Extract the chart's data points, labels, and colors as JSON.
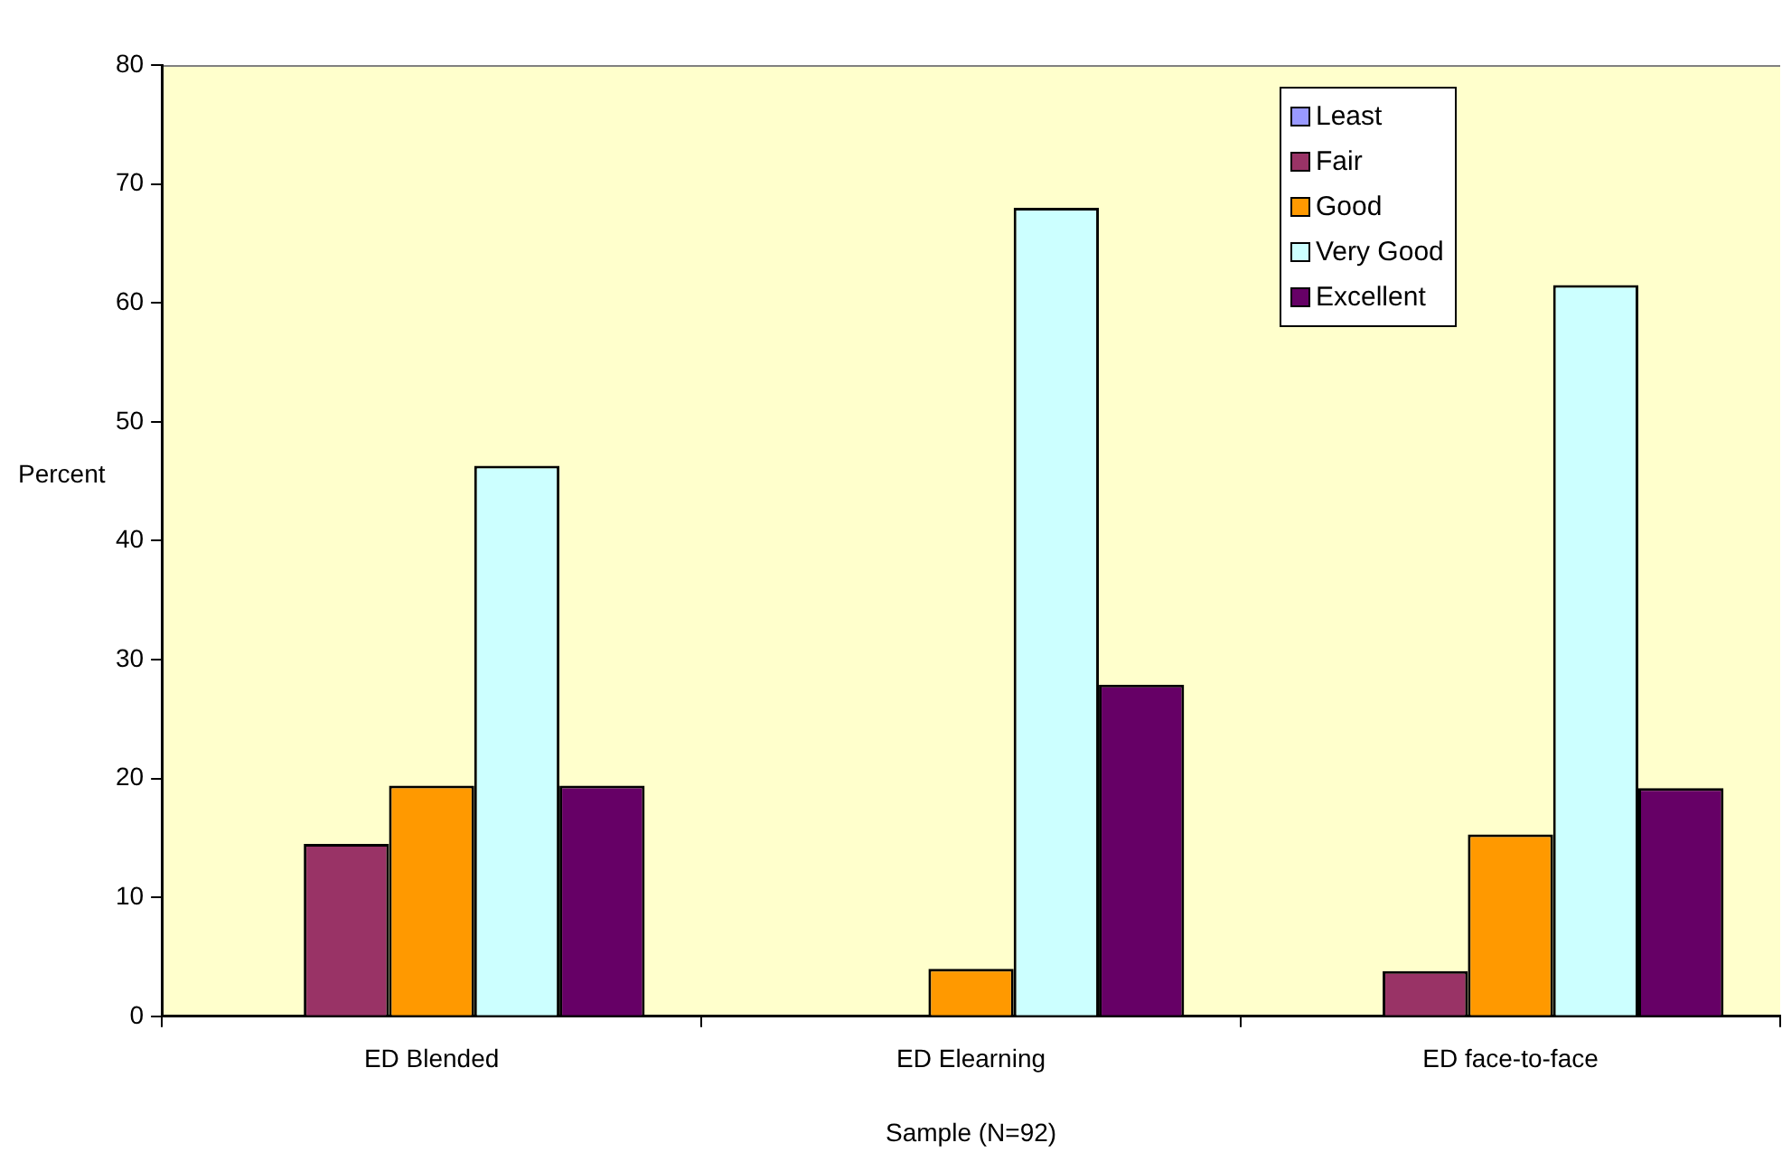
{
  "chart_data": {
    "type": "bar",
    "xlabel": "Sample (N=92)",
    "ylabel": "Percent",
    "categories": [
      "ED Blended",
      "ED Elearning",
      "ED face-to-face"
    ],
    "series": [
      {
        "name": "Least",
        "color": "#9999ff",
        "values": [
          0,
          0,
          0
        ]
      },
      {
        "name": "Fair",
        "color": "#993366",
        "values": [
          14.5,
          0,
          3.8
        ]
      },
      {
        "name": "Good",
        "color": "#ff9900",
        "values": [
          19.4,
          4,
          15.3
        ]
      },
      {
        "name": "Very Good",
        "color": "#ccffff",
        "values": [
          46.3,
          68,
          61.5
        ]
      },
      {
        "name": "Excellent",
        "color": "#660066",
        "values": [
          19.4,
          27.9,
          19.2
        ]
      }
    ],
    "ylim": [
      0,
      80
    ],
    "yticks": [
      0,
      10,
      20,
      30,
      40,
      50,
      60,
      70,
      80
    ],
    "grid": false,
    "legend": "top right"
  }
}
